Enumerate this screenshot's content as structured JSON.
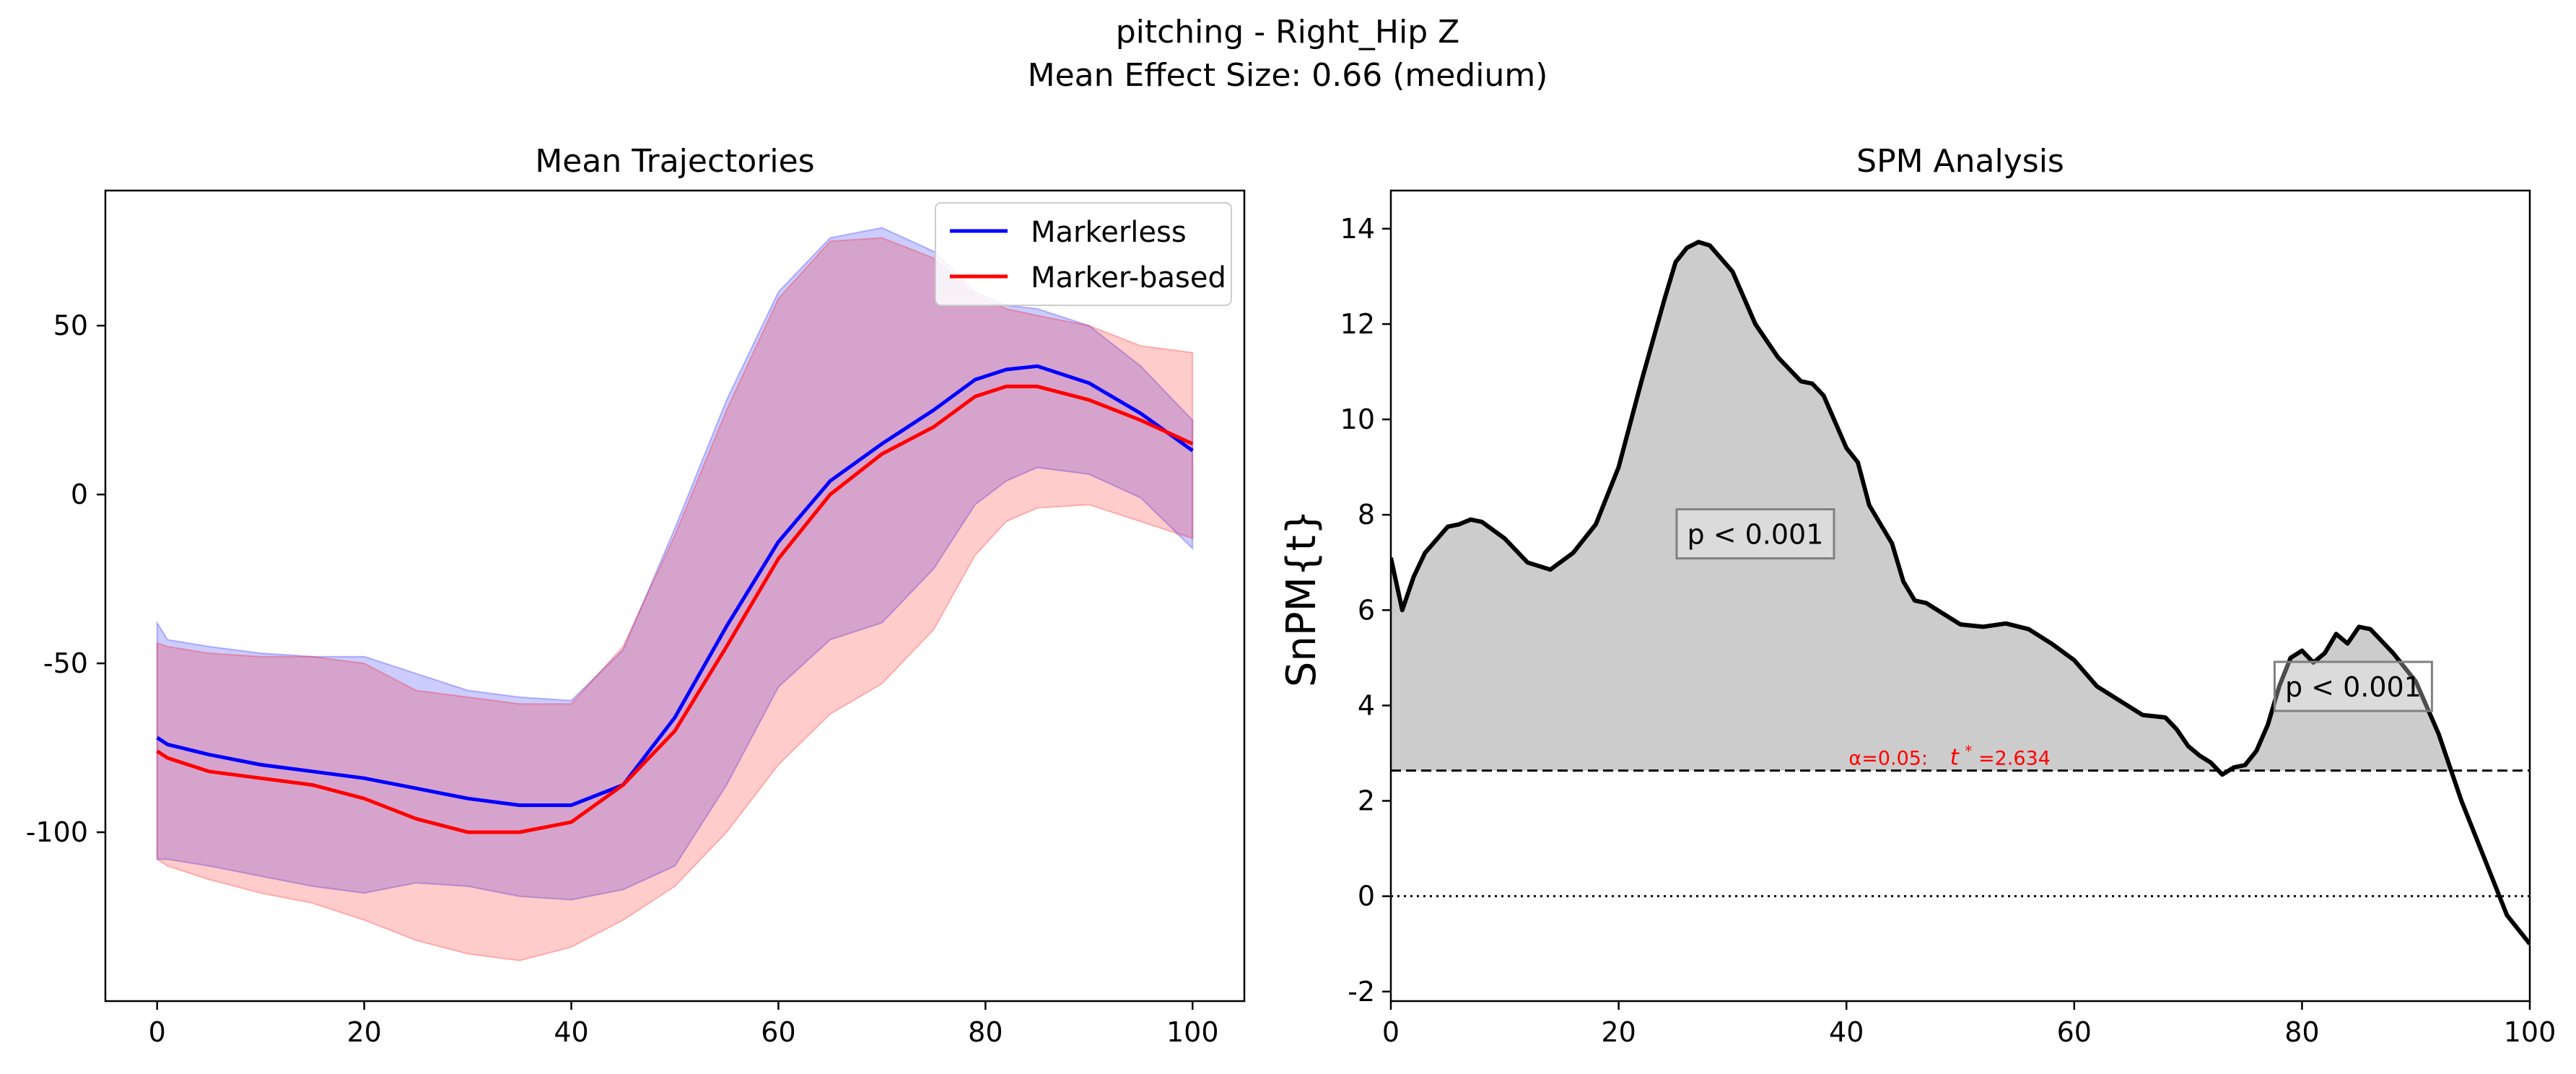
{
  "figure": {
    "title_line1": "pitching - Right_Hip Z",
    "title_line2": "Mean Effect Size: 0.66 (medium)"
  },
  "chart_data": [
    {
      "type": "line",
      "title": "Mean Trajectories",
      "xlabel": "",
      "ylabel": "",
      "xlim": [
        -5,
        105
      ],
      "ylim": [
        -150,
        90
      ],
      "xticks": [
        0,
        20,
        40,
        60,
        80,
        100
      ],
      "yticks": [
        -100,
        -50,
        0,
        50
      ],
      "grid": false,
      "legend_position": "top-right",
      "x": [
        0,
        1,
        5,
        10,
        15,
        20,
        25,
        30,
        35,
        40,
        45,
        50,
        55,
        60,
        65,
        70,
        75,
        79,
        82,
        85,
        90,
        95,
        100
      ],
      "series": [
        {
          "name": "Markerless",
          "color": "#0000ff",
          "band_color": "#0000ff",
          "mean": [
            -72,
            -74,
            -77,
            -80,
            -82,
            -84,
            -87,
            -90,
            -92,
            -92,
            -86,
            -66,
            -39,
            -14,
            4,
            15,
            25,
            34,
            37,
            38,
            33,
            24,
            13
          ],
          "upper": [
            -38,
            -43,
            -45,
            -47,
            -48,
            -48,
            -53,
            -58,
            -60,
            -61,
            -46,
            -10,
            28,
            60,
            76,
            79,
            72,
            60,
            56,
            55,
            50,
            38,
            22
          ],
          "lower": [
            -108,
            -108,
            -110,
            -113,
            -116,
            -118,
            -115,
            -116,
            -119,
            -120,
            -117,
            -110,
            -86,
            -57,
            -43,
            -38,
            -22,
            -3,
            4,
            8,
            6,
            -1,
            -16
          ]
        },
        {
          "name": "Marker-based",
          "color": "#ff0000",
          "band_color": "#ff0000",
          "mean": [
            -76,
            -78,
            -82,
            -84,
            -86,
            -90,
            -96,
            -100,
            -100,
            -97,
            -86,
            -70,
            -45,
            -19,
            0,
            12,
            20,
            29,
            32,
            32,
            28,
            22,
            15
          ],
          "upper": [
            -44,
            -45,
            -47,
            -48,
            -48,
            -50,
            -58,
            -60,
            -62,
            -62,
            -45,
            -12,
            25,
            58,
            75,
            76,
            70,
            59,
            55,
            53,
            50,
            44,
            42
          ],
          "lower": [
            -108,
            -110,
            -114,
            -118,
            -121,
            -126,
            -132,
            -136,
            -138,
            -134,
            -126,
            -116,
            -100,
            -80,
            -65,
            -56,
            -40,
            -18,
            -8,
            -4,
            -3,
            -8,
            -13
          ]
        }
      ]
    },
    {
      "type": "line",
      "title": "SPM Analysis",
      "xlabel": "",
      "ylabel": "SnPM{t}",
      "xlim": [
        0,
        100
      ],
      "ylim": [
        -2.2,
        14.8
      ],
      "xticks": [
        0,
        20,
        40,
        60,
        80,
        100
      ],
      "yticks": [
        -2,
        0,
        2,
        4,
        6,
        8,
        10,
        12,
        14
      ],
      "grid": false,
      "threshold": 2.634,
      "threshold_label_alpha": "α=0.05:",
      "threshold_label_t": "t",
      "threshold_label_star": "*",
      "threshold_label_value": "=2.634",
      "zero_line": 0,
      "line_color": "#000000",
      "fill_color": "#cccccc",
      "annotation_color": "#ff0000",
      "clusters": [
        {
          "label": "p < 0.001",
          "label_x": 32,
          "label_y": 7.6
        },
        {
          "label": "p < 0.001",
          "label_x": 84.5,
          "label_y": 4.4
        }
      ],
      "x": [
        0,
        1,
        2,
        3,
        5,
        6,
        7,
        8,
        10,
        12,
        14,
        16,
        18,
        20,
        22,
        24,
        25,
        26,
        27,
        28,
        30,
        32,
        34,
        36,
        37,
        38,
        40,
        41,
        42,
        43,
        44,
        45,
        46,
        47,
        48,
        50,
        52,
        54,
        56,
        58,
        60,
        62,
        64,
        66,
        68,
        69,
        70,
        71,
        72,
        73,
        74,
        75,
        76,
        77,
        78,
        79,
        80,
        81,
        82,
        83,
        84,
        85,
        86,
        87,
        88,
        90,
        92,
        94,
        96,
        98,
        100
      ],
      "values": [
        7.1,
        6.0,
        6.7,
        7.2,
        7.75,
        7.8,
        7.9,
        7.85,
        7.5,
        7.0,
        6.85,
        7.2,
        7.8,
        9.0,
        10.8,
        12.5,
        13.3,
        13.6,
        13.72,
        13.65,
        13.1,
        12.0,
        11.3,
        10.8,
        10.75,
        10.5,
        9.4,
        9.1,
        8.2,
        7.8,
        7.4,
        6.6,
        6.2,
        6.15,
        6.0,
        5.7,
        5.65,
        5.72,
        5.6,
        5.3,
        4.95,
        4.4,
        4.1,
        3.8,
        3.75,
        3.5,
        3.15,
        2.95,
        2.8,
        2.55,
        2.7,
        2.75,
        3.05,
        3.6,
        4.4,
        5.0,
        5.15,
        4.9,
        5.1,
        5.5,
        5.3,
        5.65,
        5.6,
        5.35,
        5.1,
        4.5,
        3.4,
        2.0,
        0.8,
        -0.4,
        -1.0
      ]
    }
  ]
}
